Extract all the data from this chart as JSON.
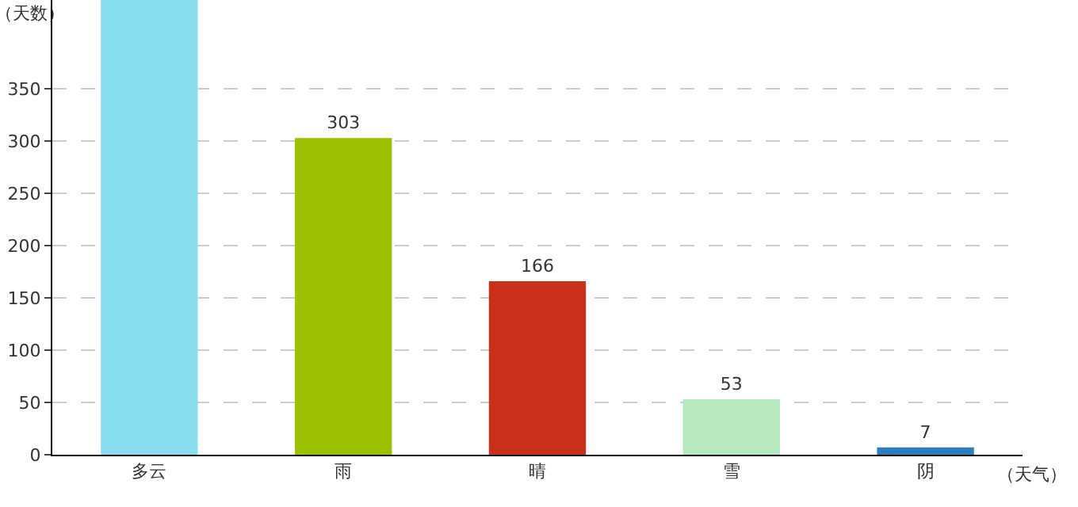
{
  "chart_data": {
    "type": "bar",
    "xlabel": "（天气）",
    "ylabel": "（天数）",
    "categories": [
      "多云",
      "雨",
      "晴",
      "雪",
      "阴"
    ],
    "values": [
      435,
      303,
      166,
      53,
      7
    ],
    "colors": [
      "#89dff0",
      "#9cc100",
      "#c8301a",
      "#b3e9bc",
      "#2e7ebf"
    ],
    "value_labels": [
      null,
      "303",
      "166",
      "53",
      "7"
    ],
    "ylim": [
      0,
      435
    ],
    "yticks": [
      0,
      50,
      100,
      150,
      200,
      250,
      300,
      350
    ],
    "grid": "y",
    "legend": false
  }
}
